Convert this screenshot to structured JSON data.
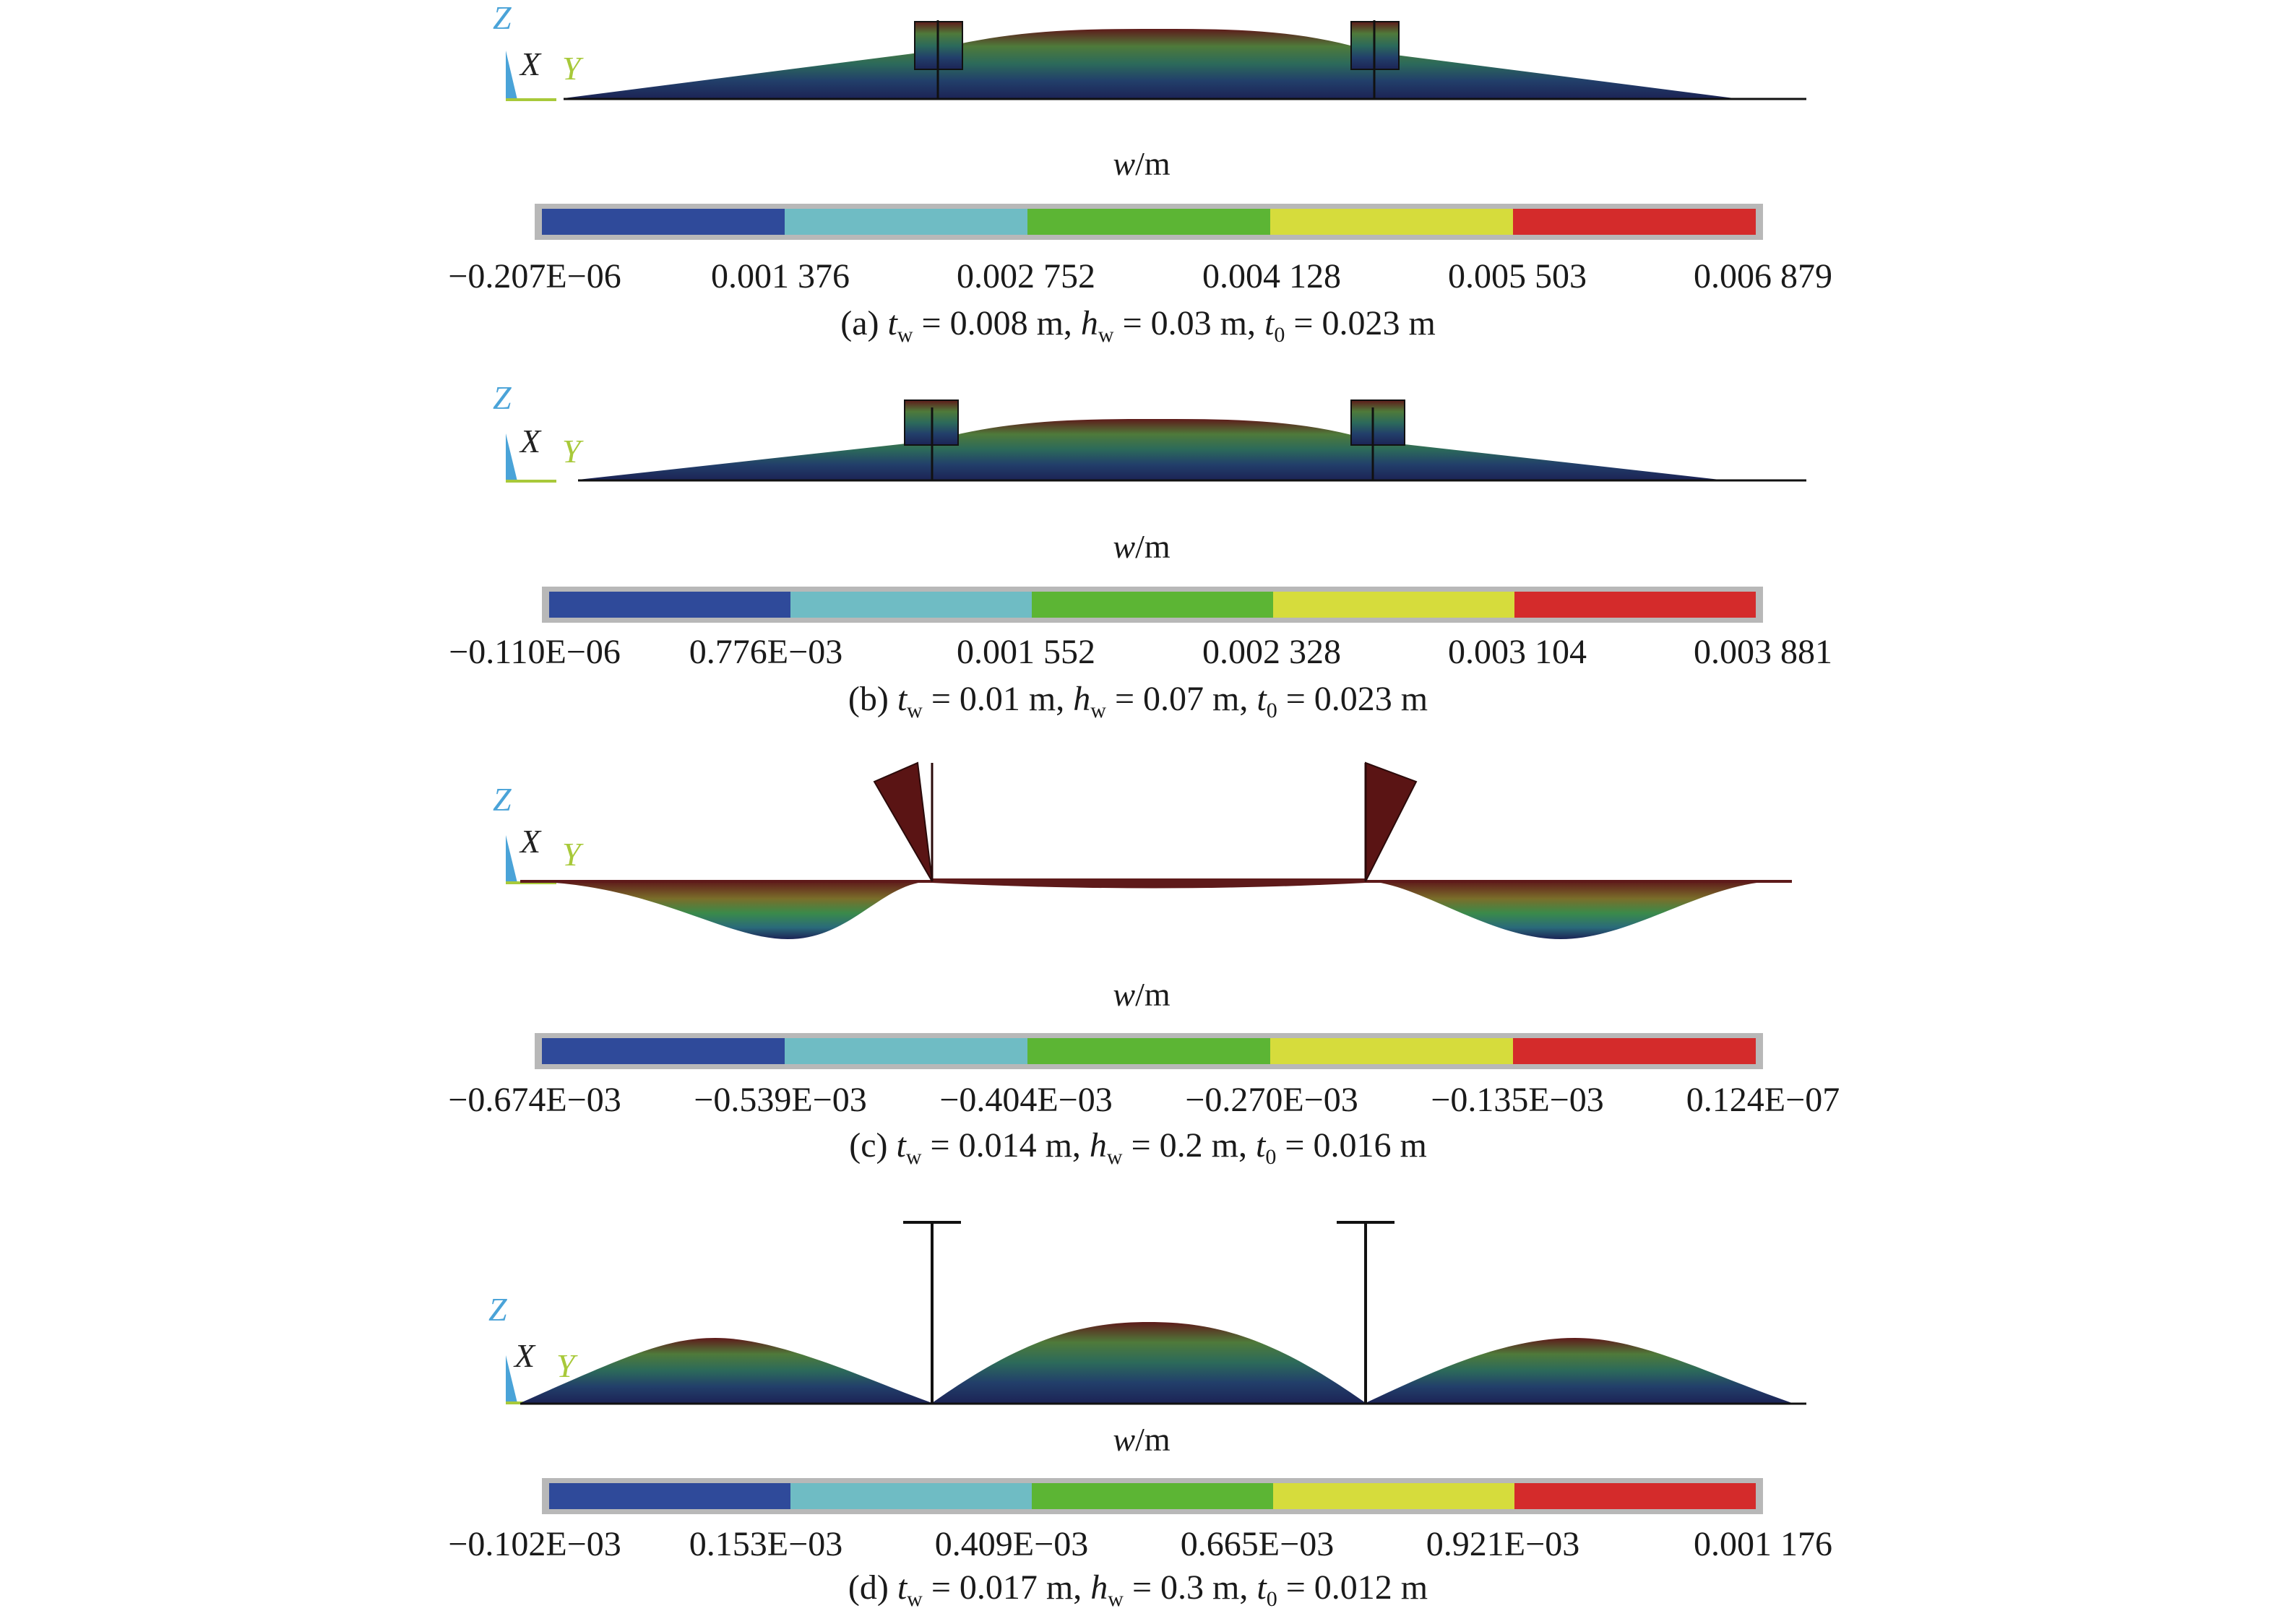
{
  "colors": [
    "#2f4a9a",
    "#6fbcc4",
    "#5cb534",
    "#d6dc3c",
    "#d42b2b"
  ],
  "axes": {
    "z": "Z",
    "x": "X",
    "y": "Y"
  },
  "panels": [
    {
      "id": "a",
      "w_label": "w",
      "w_unit": "/m",
      "ticks": [
        "−0.207E−06",
        "0.001 376",
        "0.002 752",
        "0.004 128",
        "0.005 503",
        "0.006 879"
      ],
      "caption": {
        "label": "(a)",
        "tw": "0.008 m",
        "hw": "0.03 m",
        "t0": "0.023 m"
      }
    },
    {
      "id": "b",
      "w_label": "w",
      "w_unit": "/m",
      "ticks": [
        "−0.110E−06",
        "0.776E−03",
        "0.001 552",
        "0.002 328",
        "0.003 104",
        "0.003 881"
      ],
      "caption": {
        "label": "(b)",
        "tw": "0.01 m",
        "hw": "0.07 m",
        "t0": "0.023 m"
      }
    },
    {
      "id": "c",
      "w_label": "w",
      "w_unit": "/m",
      "ticks": [
        "−0.674E−03",
        "−0.539E−03",
        "−0.404E−03",
        "−0.270E−03",
        "−0.135E−03",
        "0.124E−07"
      ],
      "caption": {
        "label": "(c)",
        "tw": "0.014 m",
        "hw": "0.2 m",
        "t0": "0.016 m"
      }
    },
    {
      "id": "d",
      "w_label": "w",
      "w_unit": "/m",
      "ticks": [
        "−0.102E−03",
        "0.153E−03",
        "0.409E−03",
        "0.665E−03",
        "0.921E−03",
        "0.001 176"
      ],
      "caption": {
        "label": "(d)",
        "tw": "0.017 m",
        "hw": "0.3 m",
        "t0": "0.012 m"
      }
    }
  ]
}
